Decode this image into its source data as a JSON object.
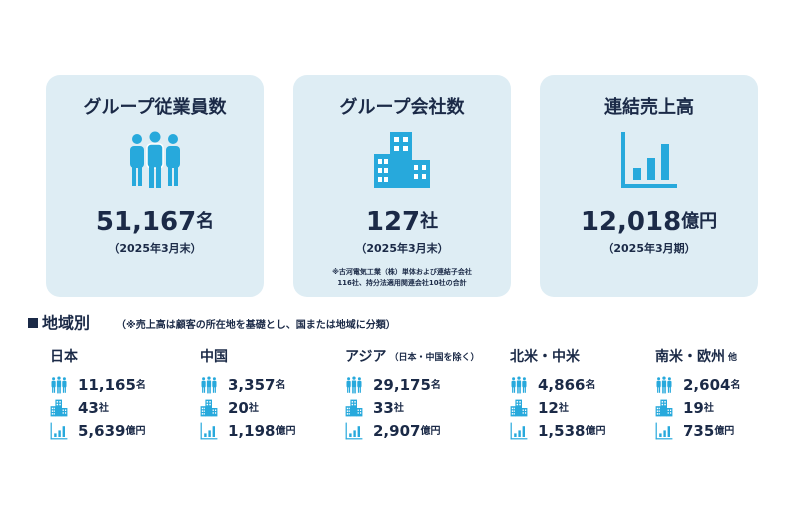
{
  "cards": [
    {
      "title": "グループ従業員数",
      "value": "51,167",
      "unit": "名",
      "date": "（2025年3月末）"
    },
    {
      "title": "グループ会社数",
      "value": "127",
      "unit": "社",
      "date": "（2025年3月末）",
      "note": [
        "※古河電気工業（株）単体および連結子会社",
        "116社、持分法適用関連会社10社の合計"
      ]
    },
    {
      "title": "連結売上高",
      "value": "12,018",
      "unit": "億円",
      "date": "（2025年3月期）"
    }
  ],
  "regions_section": {
    "title": "地域別",
    "note": "（※売上高は顧客の所在地を基礎とし、国または地域に分類）",
    "regions": [
      {
        "name": "日本",
        "rows": [
          {
            "value": "11,165",
            "unit": "名"
          },
          {
            "value": "43",
            "unit": "社"
          },
          {
            "value": "5,639",
            "unit": "億円"
          }
        ]
      },
      {
        "name": "中国",
        "rows": [
          {
            "value": "3,357",
            "unit": "名"
          },
          {
            "value": "20",
            "unit": "社"
          },
          {
            "value": "1,198",
            "unit": "億円"
          }
        ]
      },
      {
        "name": "アジア",
        "sub": "（日本・中国を除く）",
        "rows": [
          {
            "value": "29,175",
            "unit": "名"
          },
          {
            "value": "33",
            "unit": "社"
          },
          {
            "value": "2,907",
            "unit": "億円"
          }
        ]
      },
      {
        "name": "北米・中米",
        "rows": [
          {
            "value": "4,866",
            "unit": "名"
          },
          {
            "value": "12",
            "unit": "社"
          },
          {
            "value": "1,538",
            "unit": "億円"
          }
        ]
      },
      {
        "name": "南米・欧州",
        "sub": "他",
        "rows": [
          {
            "value": "2,604",
            "unit": "名"
          },
          {
            "value": "19",
            "unit": "社"
          },
          {
            "value": "735",
            "unit": "億円"
          }
        ]
      }
    ]
  }
}
